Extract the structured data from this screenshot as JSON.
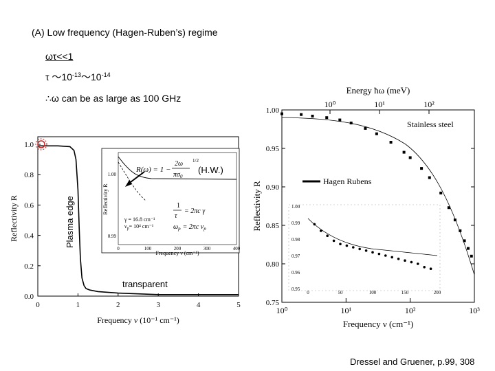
{
  "slide": {
    "title": "(A) Low frequency (Hagen-Ruben’s) regime",
    "line1": "ωτ<<1",
    "line2_prefix": "τ ～10",
    "line2_exp1": "-13",
    "line2_mid": "～10",
    "line2_exp2": "-14",
    "line3": "∴ω can be as large as 100 GHz",
    "plasma_edge": "Plasma edge",
    "hw_note": "(H.W.)",
    "transparent": "transparent",
    "citation": "Dressel and Gruener, p.99, 308"
  },
  "chart_data": [
    {
      "type": "line",
      "xlabel": "Frequency ν (10⁻¹ cm⁻¹)",
      "ylabel": "Reflectivity R",
      "xlim": [
        0,
        5
      ],
      "ylim": [
        0,
        1.05
      ],
      "xticks": [
        "0",
        "1",
        "2",
        "3",
        "4",
        "5"
      ],
      "yticks": [
        "0.0",
        "0.2",
        "0.4",
        "0.6",
        "0.8",
        "1.0"
      ],
      "x": [
        0.0,
        0.5,
        0.8,
        0.9,
        0.95,
        1.0,
        1.03,
        1.06,
        1.1,
        1.15,
        1.2,
        1.3,
        1.5,
        2.0,
        3.0,
        4.0,
        5.0
      ],
      "y": [
        0.99,
        0.99,
        0.985,
        0.96,
        0.9,
        0.7,
        0.45,
        0.25,
        0.12,
        0.07,
        0.05,
        0.04,
        0.03,
        0.02,
        0.01,
        0.01,
        0.01
      ],
      "inset": {
        "formula_lhs": "R(ω) = 1 −",
        "formula_num": "2ω",
        "formula_den": "πσ",
        "formula_den_sub": "0",
        "formula_exp": "1/2",
        "tau_num": "1",
        "tau_den": "τ",
        "tau_rhs": "= 2πc γ",
        "omega_p": "ω",
        "omega_p_sub": "p",
        "omega_p_rhs": "= 2πc ν",
        "omega_p_rhs_sub": "p",
        "gamma_label": "γ = 16.8 cm⁻¹",
        "nup_label": "ν",
        "nup_sub": "p",
        "nup_rhs": "= 10⁴ cm⁻¹",
        "xlabel": "Frequency ν (cm⁻¹)",
        "ylabel": "Reflectivity R",
        "xticks": [
          "0",
          "100",
          "200",
          "300",
          "400"
        ],
        "yticks": [
          "0.99",
          "1.00"
        ]
      }
    },
    {
      "type": "scatter",
      "xscale": "log",
      "xlabel": "Frequency ν (cm⁻¹)",
      "ylabel": "Reflectivity R",
      "top_axis_label": "Energy ħω (meV)",
      "xlim": [
        1,
        1000
      ],
      "ylim": [
        0.75,
        1.0
      ],
      "xticks": [
        "10⁰",
        "10¹",
        "10²",
        "10³"
      ],
      "top_xticks": [
        "10⁰",
        "10¹",
        "10²"
      ],
      "yticks": [
        "0.75",
        "0.80",
        "0.85",
        "0.90",
        "0.95",
        "1.00"
      ],
      "annotation": "Stainless steel",
      "legend": "Hagen  Rubens",
      "series": [
        {
          "name": "Stainless steel",
          "x": [
            1,
            2,
            3,
            5,
            8,
            12,
            20,
            30,
            50,
            80,
            100,
            150,
            200,
            300,
            400,
            500,
            600,
            700,
            800,
            900
          ],
          "y": [
            0.995,
            0.994,
            0.992,
            0.99,
            0.987,
            0.983,
            0.976,
            0.969,
            0.958,
            0.945,
            0.938,
            0.924,
            0.912,
            0.892,
            0.873,
            0.857,
            0.843,
            0.83,
            0.82,
            0.81
          ]
        }
      ],
      "inset": {
        "xlabel_ticks": [
          "0",
          "50",
          "100",
          "150",
          "200"
        ],
        "yticks": [
          "0.95",
          "0.96",
          "0.97",
          "0.98",
          "0.99",
          "1.00"
        ],
        "x": [
          10,
          20,
          30,
          40,
          50,
          60,
          70,
          80,
          90,
          100,
          110,
          120,
          130,
          140,
          150,
          160,
          170,
          180,
          190
        ],
        "y": [
          0.989,
          0.985,
          0.982,
          0.979,
          0.977,
          0.976,
          0.975,
          0.974,
          0.973,
          0.972,
          0.971,
          0.97,
          0.969,
          0.968,
          0.967,
          0.966,
          0.965,
          0.963,
          0.962
        ]
      }
    }
  ]
}
